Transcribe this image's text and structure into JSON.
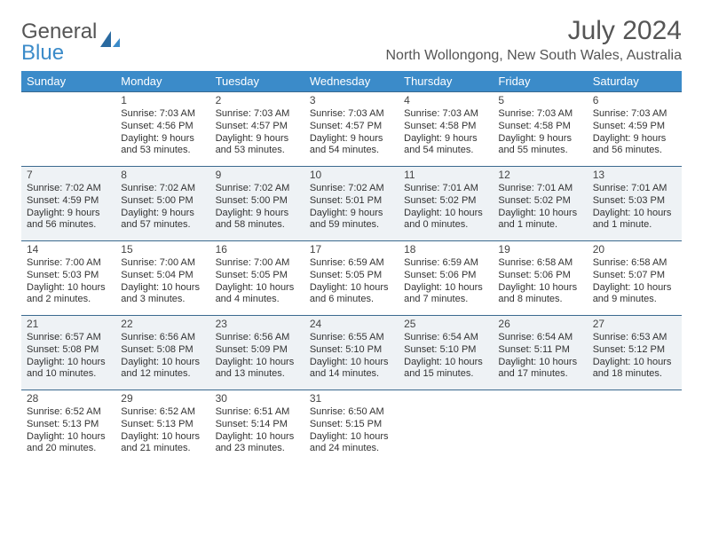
{
  "logo": {
    "text1": "General",
    "text2": "Blue"
  },
  "title": "July 2024",
  "location": "North Wollongong, New South Wales, Australia",
  "weekdays": [
    "Sunday",
    "Monday",
    "Tuesday",
    "Wednesday",
    "Thursday",
    "Friday",
    "Saturday"
  ],
  "style": {
    "header_bg": "#3b8bc9",
    "header_fg": "#ffffff",
    "row_border": "#3b6a8f",
    "alt_row_bg": "#eef2f5",
    "text_color": "#333333",
    "title_color": "#555555"
  },
  "weeks": [
    {
      "alt": false,
      "days": [
        null,
        {
          "n": "1",
          "sr": "Sunrise: 7:03 AM",
          "ss": "Sunset: 4:56 PM",
          "d1": "Daylight: 9 hours",
          "d2": "and 53 minutes."
        },
        {
          "n": "2",
          "sr": "Sunrise: 7:03 AM",
          "ss": "Sunset: 4:57 PM",
          "d1": "Daylight: 9 hours",
          "d2": "and 53 minutes."
        },
        {
          "n": "3",
          "sr": "Sunrise: 7:03 AM",
          "ss": "Sunset: 4:57 PM",
          "d1": "Daylight: 9 hours",
          "d2": "and 54 minutes."
        },
        {
          "n": "4",
          "sr": "Sunrise: 7:03 AM",
          "ss": "Sunset: 4:58 PM",
          "d1": "Daylight: 9 hours",
          "d2": "and 54 minutes."
        },
        {
          "n": "5",
          "sr": "Sunrise: 7:03 AM",
          "ss": "Sunset: 4:58 PM",
          "d1": "Daylight: 9 hours",
          "d2": "and 55 minutes."
        },
        {
          "n": "6",
          "sr": "Sunrise: 7:03 AM",
          "ss": "Sunset: 4:59 PM",
          "d1": "Daylight: 9 hours",
          "d2": "and 56 minutes."
        }
      ]
    },
    {
      "alt": true,
      "days": [
        {
          "n": "7",
          "sr": "Sunrise: 7:02 AM",
          "ss": "Sunset: 4:59 PM",
          "d1": "Daylight: 9 hours",
          "d2": "and 56 minutes."
        },
        {
          "n": "8",
          "sr": "Sunrise: 7:02 AM",
          "ss": "Sunset: 5:00 PM",
          "d1": "Daylight: 9 hours",
          "d2": "and 57 minutes."
        },
        {
          "n": "9",
          "sr": "Sunrise: 7:02 AM",
          "ss": "Sunset: 5:00 PM",
          "d1": "Daylight: 9 hours",
          "d2": "and 58 minutes."
        },
        {
          "n": "10",
          "sr": "Sunrise: 7:02 AM",
          "ss": "Sunset: 5:01 PM",
          "d1": "Daylight: 9 hours",
          "d2": "and 59 minutes."
        },
        {
          "n": "11",
          "sr": "Sunrise: 7:01 AM",
          "ss": "Sunset: 5:02 PM",
          "d1": "Daylight: 10 hours",
          "d2": "and 0 minutes."
        },
        {
          "n": "12",
          "sr": "Sunrise: 7:01 AM",
          "ss": "Sunset: 5:02 PM",
          "d1": "Daylight: 10 hours",
          "d2": "and 1 minute."
        },
        {
          "n": "13",
          "sr": "Sunrise: 7:01 AM",
          "ss": "Sunset: 5:03 PM",
          "d1": "Daylight: 10 hours",
          "d2": "and 1 minute."
        }
      ]
    },
    {
      "alt": false,
      "days": [
        {
          "n": "14",
          "sr": "Sunrise: 7:00 AM",
          "ss": "Sunset: 5:03 PM",
          "d1": "Daylight: 10 hours",
          "d2": "and 2 minutes."
        },
        {
          "n": "15",
          "sr": "Sunrise: 7:00 AM",
          "ss": "Sunset: 5:04 PM",
          "d1": "Daylight: 10 hours",
          "d2": "and 3 minutes."
        },
        {
          "n": "16",
          "sr": "Sunrise: 7:00 AM",
          "ss": "Sunset: 5:05 PM",
          "d1": "Daylight: 10 hours",
          "d2": "and 4 minutes."
        },
        {
          "n": "17",
          "sr": "Sunrise: 6:59 AM",
          "ss": "Sunset: 5:05 PM",
          "d1": "Daylight: 10 hours",
          "d2": "and 6 minutes."
        },
        {
          "n": "18",
          "sr": "Sunrise: 6:59 AM",
          "ss": "Sunset: 5:06 PM",
          "d1": "Daylight: 10 hours",
          "d2": "and 7 minutes."
        },
        {
          "n": "19",
          "sr": "Sunrise: 6:58 AM",
          "ss": "Sunset: 5:06 PM",
          "d1": "Daylight: 10 hours",
          "d2": "and 8 minutes."
        },
        {
          "n": "20",
          "sr": "Sunrise: 6:58 AM",
          "ss": "Sunset: 5:07 PM",
          "d1": "Daylight: 10 hours",
          "d2": "and 9 minutes."
        }
      ]
    },
    {
      "alt": true,
      "days": [
        {
          "n": "21",
          "sr": "Sunrise: 6:57 AM",
          "ss": "Sunset: 5:08 PM",
          "d1": "Daylight: 10 hours",
          "d2": "and 10 minutes."
        },
        {
          "n": "22",
          "sr": "Sunrise: 6:56 AM",
          "ss": "Sunset: 5:08 PM",
          "d1": "Daylight: 10 hours",
          "d2": "and 12 minutes."
        },
        {
          "n": "23",
          "sr": "Sunrise: 6:56 AM",
          "ss": "Sunset: 5:09 PM",
          "d1": "Daylight: 10 hours",
          "d2": "and 13 minutes."
        },
        {
          "n": "24",
          "sr": "Sunrise: 6:55 AM",
          "ss": "Sunset: 5:10 PM",
          "d1": "Daylight: 10 hours",
          "d2": "and 14 minutes."
        },
        {
          "n": "25",
          "sr": "Sunrise: 6:54 AM",
          "ss": "Sunset: 5:10 PM",
          "d1": "Daylight: 10 hours",
          "d2": "and 15 minutes."
        },
        {
          "n": "26",
          "sr": "Sunrise: 6:54 AM",
          "ss": "Sunset: 5:11 PM",
          "d1": "Daylight: 10 hours",
          "d2": "and 17 minutes."
        },
        {
          "n": "27",
          "sr": "Sunrise: 6:53 AM",
          "ss": "Sunset: 5:12 PM",
          "d1": "Daylight: 10 hours",
          "d2": "and 18 minutes."
        }
      ]
    },
    {
      "alt": false,
      "days": [
        {
          "n": "28",
          "sr": "Sunrise: 6:52 AM",
          "ss": "Sunset: 5:13 PM",
          "d1": "Daylight: 10 hours",
          "d2": "and 20 minutes."
        },
        {
          "n": "29",
          "sr": "Sunrise: 6:52 AM",
          "ss": "Sunset: 5:13 PM",
          "d1": "Daylight: 10 hours",
          "d2": "and 21 minutes."
        },
        {
          "n": "30",
          "sr": "Sunrise: 6:51 AM",
          "ss": "Sunset: 5:14 PM",
          "d1": "Daylight: 10 hours",
          "d2": "and 23 minutes."
        },
        {
          "n": "31",
          "sr": "Sunrise: 6:50 AM",
          "ss": "Sunset: 5:15 PM",
          "d1": "Daylight: 10 hours",
          "d2": "and 24 minutes."
        },
        null,
        null,
        null
      ]
    }
  ]
}
